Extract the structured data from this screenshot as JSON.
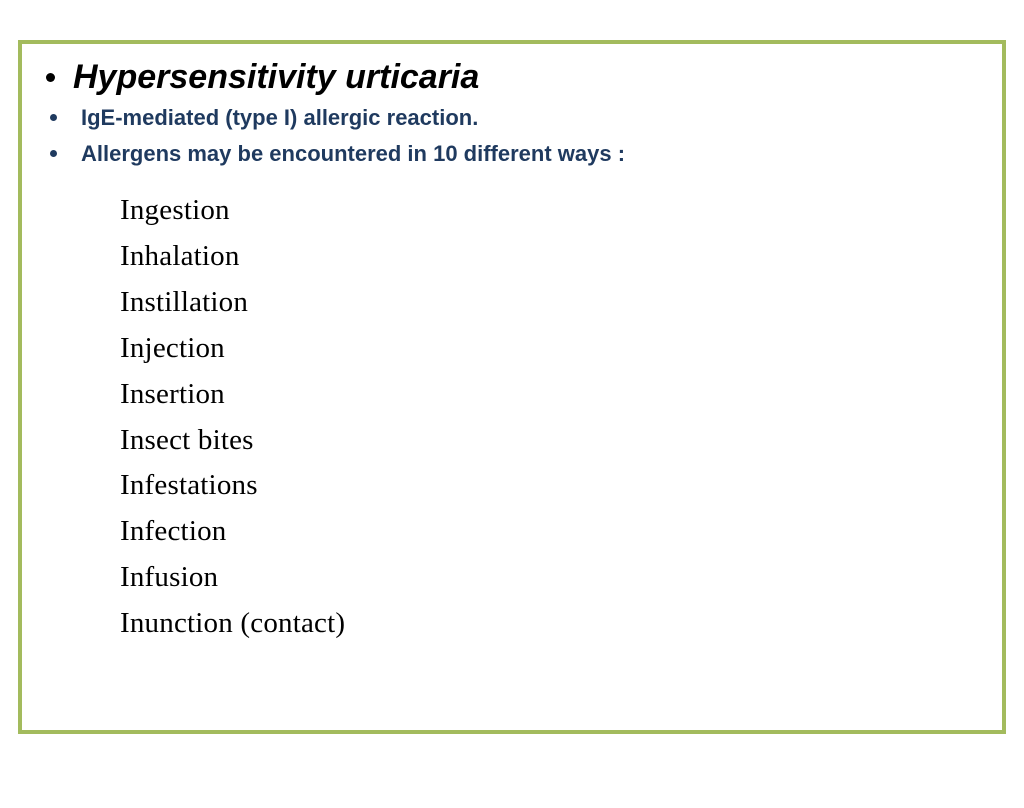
{
  "border_color": "#a3bb5d",
  "title_color": "#000000",
  "sub_color": "#1f3a5f",
  "list_color": "#000000",
  "background_color": "#ffffff",
  "title_font": "Arial",
  "list_font": "Times New Roman",
  "title_fontsize": 34,
  "sub_fontsize": 22,
  "list_fontsize": 29,
  "title": "Hypersensitivity urticaria",
  "sub_bullets": [
    "IgE-mediated (type I) allergic reaction.",
    "Allergens may be encountered in 10 different ways :"
  ],
  "ways": [
    "Ingestion",
    "Inhalation",
    "Instillation",
    "Injection",
    "Insertion",
    "Insect bites",
    "Infestations",
    "Infection",
    "Infusion",
    "Inunction (contact)"
  ]
}
